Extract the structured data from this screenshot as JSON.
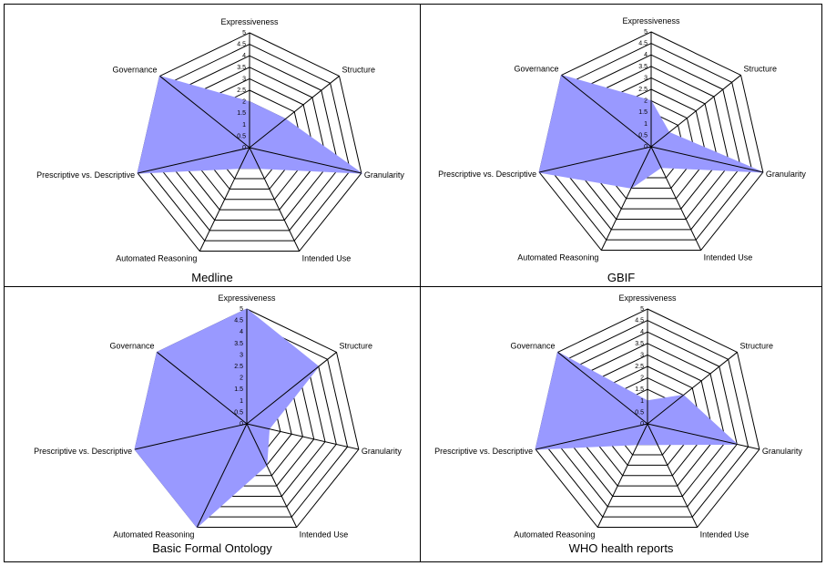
{
  "chart_data": [
    {
      "type": "radar",
      "title": "Medline",
      "axes": [
        "Expressiveness",
        "Structure",
        "Granularity",
        "Intended Use",
        "Automated Reasoning",
        "Prescriptive vs. Descriptive",
        "Governance"
      ],
      "ticks": [
        "0",
        "0.5",
        "1",
        "1.5",
        "2",
        "2.5",
        "3",
        "3.5",
        "4",
        "4.5",
        "5"
      ],
      "range": [
        0,
        5
      ],
      "grid": true,
      "fill_color": "#9999ff",
      "series": [
        {
          "values": [
            2,
            2,
            5,
            1,
            1,
            5,
            5
          ]
        }
      ]
    },
    {
      "type": "radar",
      "title": "GBIF",
      "axes": [
        "Expressiveness",
        "Structure",
        "Granularity",
        "Intended Use",
        "Automated Reasoning",
        "Prescriptive vs. Descriptive",
        "Governance"
      ],
      "ticks": [
        "0",
        "0.5",
        "1",
        "1.5",
        "2",
        "2.5",
        "3",
        "3.5",
        "4",
        "4.5",
        "5"
      ],
      "range": [
        0,
        5
      ],
      "grid": true,
      "fill_color": "#9999ff",
      "series": [
        {
          "values": [
            2,
            1,
            5,
            1,
            2,
            5,
            5
          ]
        }
      ]
    },
    {
      "type": "radar",
      "title": "Basic Formal Ontology",
      "axes": [
        "Expressiveness",
        "Structure",
        "Granularity",
        "Intended Use",
        "Automated Reasoning",
        "Prescriptive vs. Descriptive",
        "Governance"
      ],
      "ticks": [
        "0",
        "0.5",
        "1",
        "1.5",
        "2",
        "2.5",
        "3",
        "3.5",
        "4",
        "4.5",
        "5"
      ],
      "range": [
        0,
        5
      ],
      "grid": true,
      "fill_color": "#9999ff",
      "series": [
        {
          "values": [
            5,
            4,
            1,
            2,
            5,
            5,
            5
          ]
        }
      ]
    },
    {
      "type": "radar",
      "title": "WHO health reports",
      "axes": [
        "Expressiveness",
        "Structure",
        "Granularity",
        "Intended Use",
        "Automated Reasoning",
        "Prescriptive vs. Descriptive",
        "Governance"
      ],
      "ticks": [
        "0",
        "0.5",
        "1",
        "1.5",
        "2",
        "2.5",
        "3",
        "3.5",
        "4",
        "4.5",
        "5"
      ],
      "range": [
        0,
        5
      ],
      "grid": true,
      "fill_color": "#9999ff",
      "series": [
        {
          "values": [
            1,
            2,
            4,
            1,
            1,
            5,
            5
          ]
        }
      ]
    }
  ]
}
